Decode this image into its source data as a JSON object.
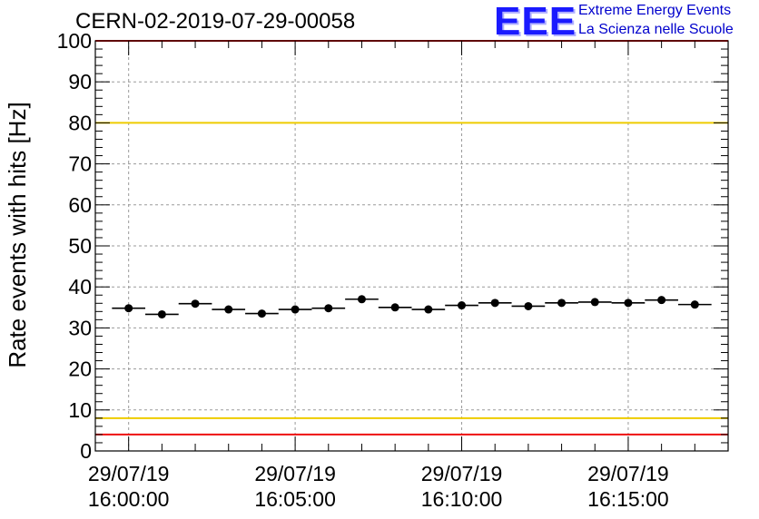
{
  "header": {
    "run_title": "CERN-02-2019-07-29-00058",
    "logo_mark": "EEE",
    "logo_line1": "Extreme Energy Events",
    "logo_line2": "La Scienza nelle Scuole"
  },
  "chart_data": {
    "type": "scatter",
    "title": "CERN-02-2019-07-29-00058",
    "xlabel": "",
    "ylabel": "Rate events with hits [Hz]",
    "ylim": [
      0,
      100
    ],
    "yticks": [
      0,
      10,
      20,
      30,
      40,
      50,
      60,
      70,
      80,
      90,
      100
    ],
    "x_axis": "time",
    "xlim": [
      "2019-07-29 15:59:00",
      "2019-07-29 16:18:00"
    ],
    "xticks": [
      {
        "time": "2019-07-29 16:00:00",
        "label_date": "29/07/19",
        "label_time": "16:00:00"
      },
      {
        "time": "2019-07-29 16:05:00",
        "label_date": "29/07/19",
        "label_time": "16:05:00"
      },
      {
        "time": "2019-07-29 16:10:00",
        "label_date": "29/07/19",
        "label_time": "16:10:00"
      },
      {
        "time": "2019-07-29 16:15:00",
        "label_date": "29/07/19",
        "label_time": "16:15:00"
      }
    ],
    "grid": true,
    "bin_width_min": 1,
    "series": [
      {
        "x": [
          "2019-07-29 16:00:00",
          "2019-07-29 16:01:00",
          "2019-07-29 16:02:00",
          "2019-07-29 16:03:00",
          "2019-07-29 16:04:00",
          "2019-07-29 16:05:00",
          "2019-07-29 16:06:00",
          "2019-07-29 16:07:00",
          "2019-07-29 16:08:00",
          "2019-07-29 16:09:00",
          "2019-07-29 16:10:00",
          "2019-07-29 16:11:00",
          "2019-07-29 16:12:00",
          "2019-07-29 16:13:00",
          "2019-07-29 16:14:00",
          "2019-07-29 16:15:00",
          "2019-07-29 16:16:00",
          "2019-07-29 16:17:00"
        ],
        "y": [
          34.8,
          33.3,
          35.9,
          34.5,
          33.5,
          34.5,
          34.8,
          37.0,
          35.0,
          34.5,
          35.5,
          36.1,
          35.3,
          36.1,
          36.3,
          36.1,
          36.8,
          35.7
        ]
      }
    ],
    "reference_lines": [
      {
        "y": 100,
        "color": "#ee1111"
      },
      {
        "y": 80,
        "color": "#eecc00"
      },
      {
        "y": 8,
        "color": "#eecc00"
      },
      {
        "y": 4,
        "color": "#ee1111"
      }
    ]
  }
}
